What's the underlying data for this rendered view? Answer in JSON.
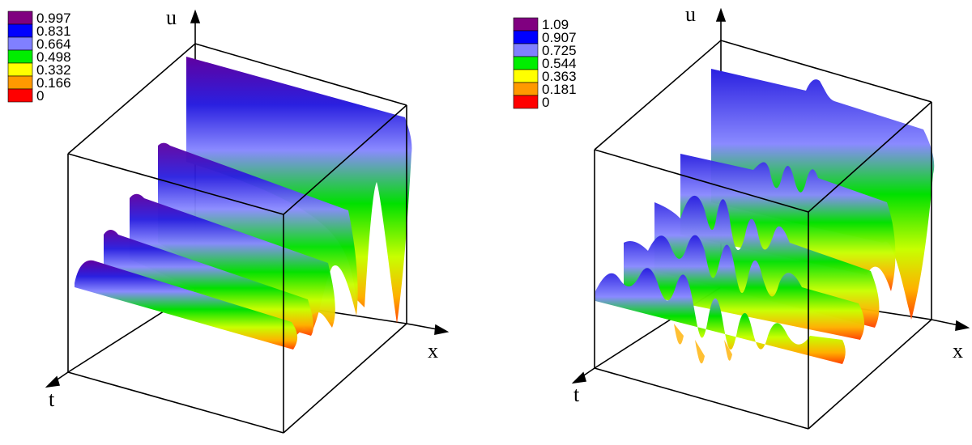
{
  "chart_data": [
    {
      "type": "surface3d",
      "axes": {
        "x_label": "x",
        "y_label": "t",
        "z_label": "u"
      },
      "colorbar": {
        "ticks": [
          "0.997",
          "0.831",
          "0.664",
          "0.498",
          "0.332",
          "0.166",
          "0"
        ],
        "colors": [
          "#800080",
          "#0000ff",
          "#8080ff",
          "#00ee00",
          "#ffff00",
          "#ff9900",
          "#ff0000"
        ]
      },
      "surface": {
        "t_slices": 5,
        "description_values": [
          {
            "t_index": 0,
            "u_base": 0.96,
            "bump_amp": 0.06,
            "bump_width": 0.22
          },
          {
            "t_index": 1,
            "u_base": 0.58,
            "bump_amp": 0.03,
            "bump_width": 0.26
          },
          {
            "t_index": 2,
            "u_base": 0.42,
            "bump_amp": 0.02,
            "bump_width": 0.3
          },
          {
            "t_index": 3,
            "u_base": 0.36,
            "bump_amp": 0.02,
            "bump_width": 0.34
          },
          {
            "t_index": 4,
            "u_base": 0.3,
            "bump_amp": 0.02,
            "bump_width": 0.38
          }
        ]
      }
    },
    {
      "type": "surface3d",
      "axes": {
        "x_label": "x",
        "y_label": "t",
        "z_label": "u"
      },
      "colorbar": {
        "ticks": [
          "1.09",
          "0.907",
          "0.725",
          "0.544",
          "0.363",
          "0.181",
          "0"
        ],
        "colors": [
          "#800080",
          "#0000ff",
          "#8080ff",
          "#00ee00",
          "#ffff00",
          "#ff9900",
          "#ff0000"
        ]
      },
      "surface": {
        "t_slices": 5,
        "description_values": [
          {
            "t_index": 0,
            "u_base": 0.86,
            "osc_amp": 0.08,
            "osc_freq": 3
          },
          {
            "t_index": 1,
            "u_base": 0.62,
            "osc_amp": 0.12,
            "osc_freq": 5
          },
          {
            "t_index": 2,
            "u_base": 0.52,
            "osc_amp": 0.22,
            "osc_freq": 7
          },
          {
            "t_index": 3,
            "u_base": 0.38,
            "osc_amp": 0.22,
            "osc_freq": 9
          },
          {
            "t_index": 4,
            "u_base": 0.3,
            "osc_amp": 0.16,
            "osc_freq": 10
          }
        ]
      }
    }
  ]
}
